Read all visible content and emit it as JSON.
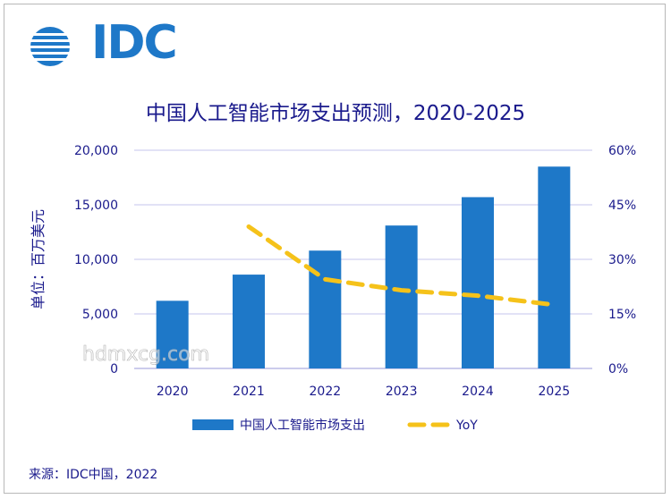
{
  "brand": {
    "logo_text": "IDC",
    "logo_color": "#1e78c8"
  },
  "source": "来源：IDC中国，2022",
  "watermark": "hdmxcg.com",
  "chart_data": {
    "type": "bar",
    "title": "中国人工智能市场支出预测，2020-2025",
    "ylabel": "单位：百万美元",
    "categories": [
      "2020",
      "2021",
      "2022",
      "2023",
      "2024",
      "2025"
    ],
    "y_ticks": [
      "0",
      "5,000",
      "10,000",
      "15,000",
      "20,000"
    ],
    "y2_ticks": [
      "0%",
      "15%",
      "30%",
      "45%",
      "60%"
    ],
    "ylim": [
      0,
      20000
    ],
    "y2lim": [
      0,
      60
    ],
    "grid": true,
    "legend_position": "bottom",
    "series": [
      {
        "name": "中国人工智能市场支出",
        "type": "bar",
        "axis": "left",
        "color": "#1e78c8",
        "values": [
          6200,
          8600,
          10800,
          13100,
          15700,
          18500
        ]
      },
      {
        "name": "YoY",
        "type": "line",
        "style": "dashed",
        "axis": "right",
        "color": "#f5c21a",
        "values": [
          null,
          39,
          24.5,
          21.5,
          20,
          17.5
        ]
      }
    ]
  }
}
